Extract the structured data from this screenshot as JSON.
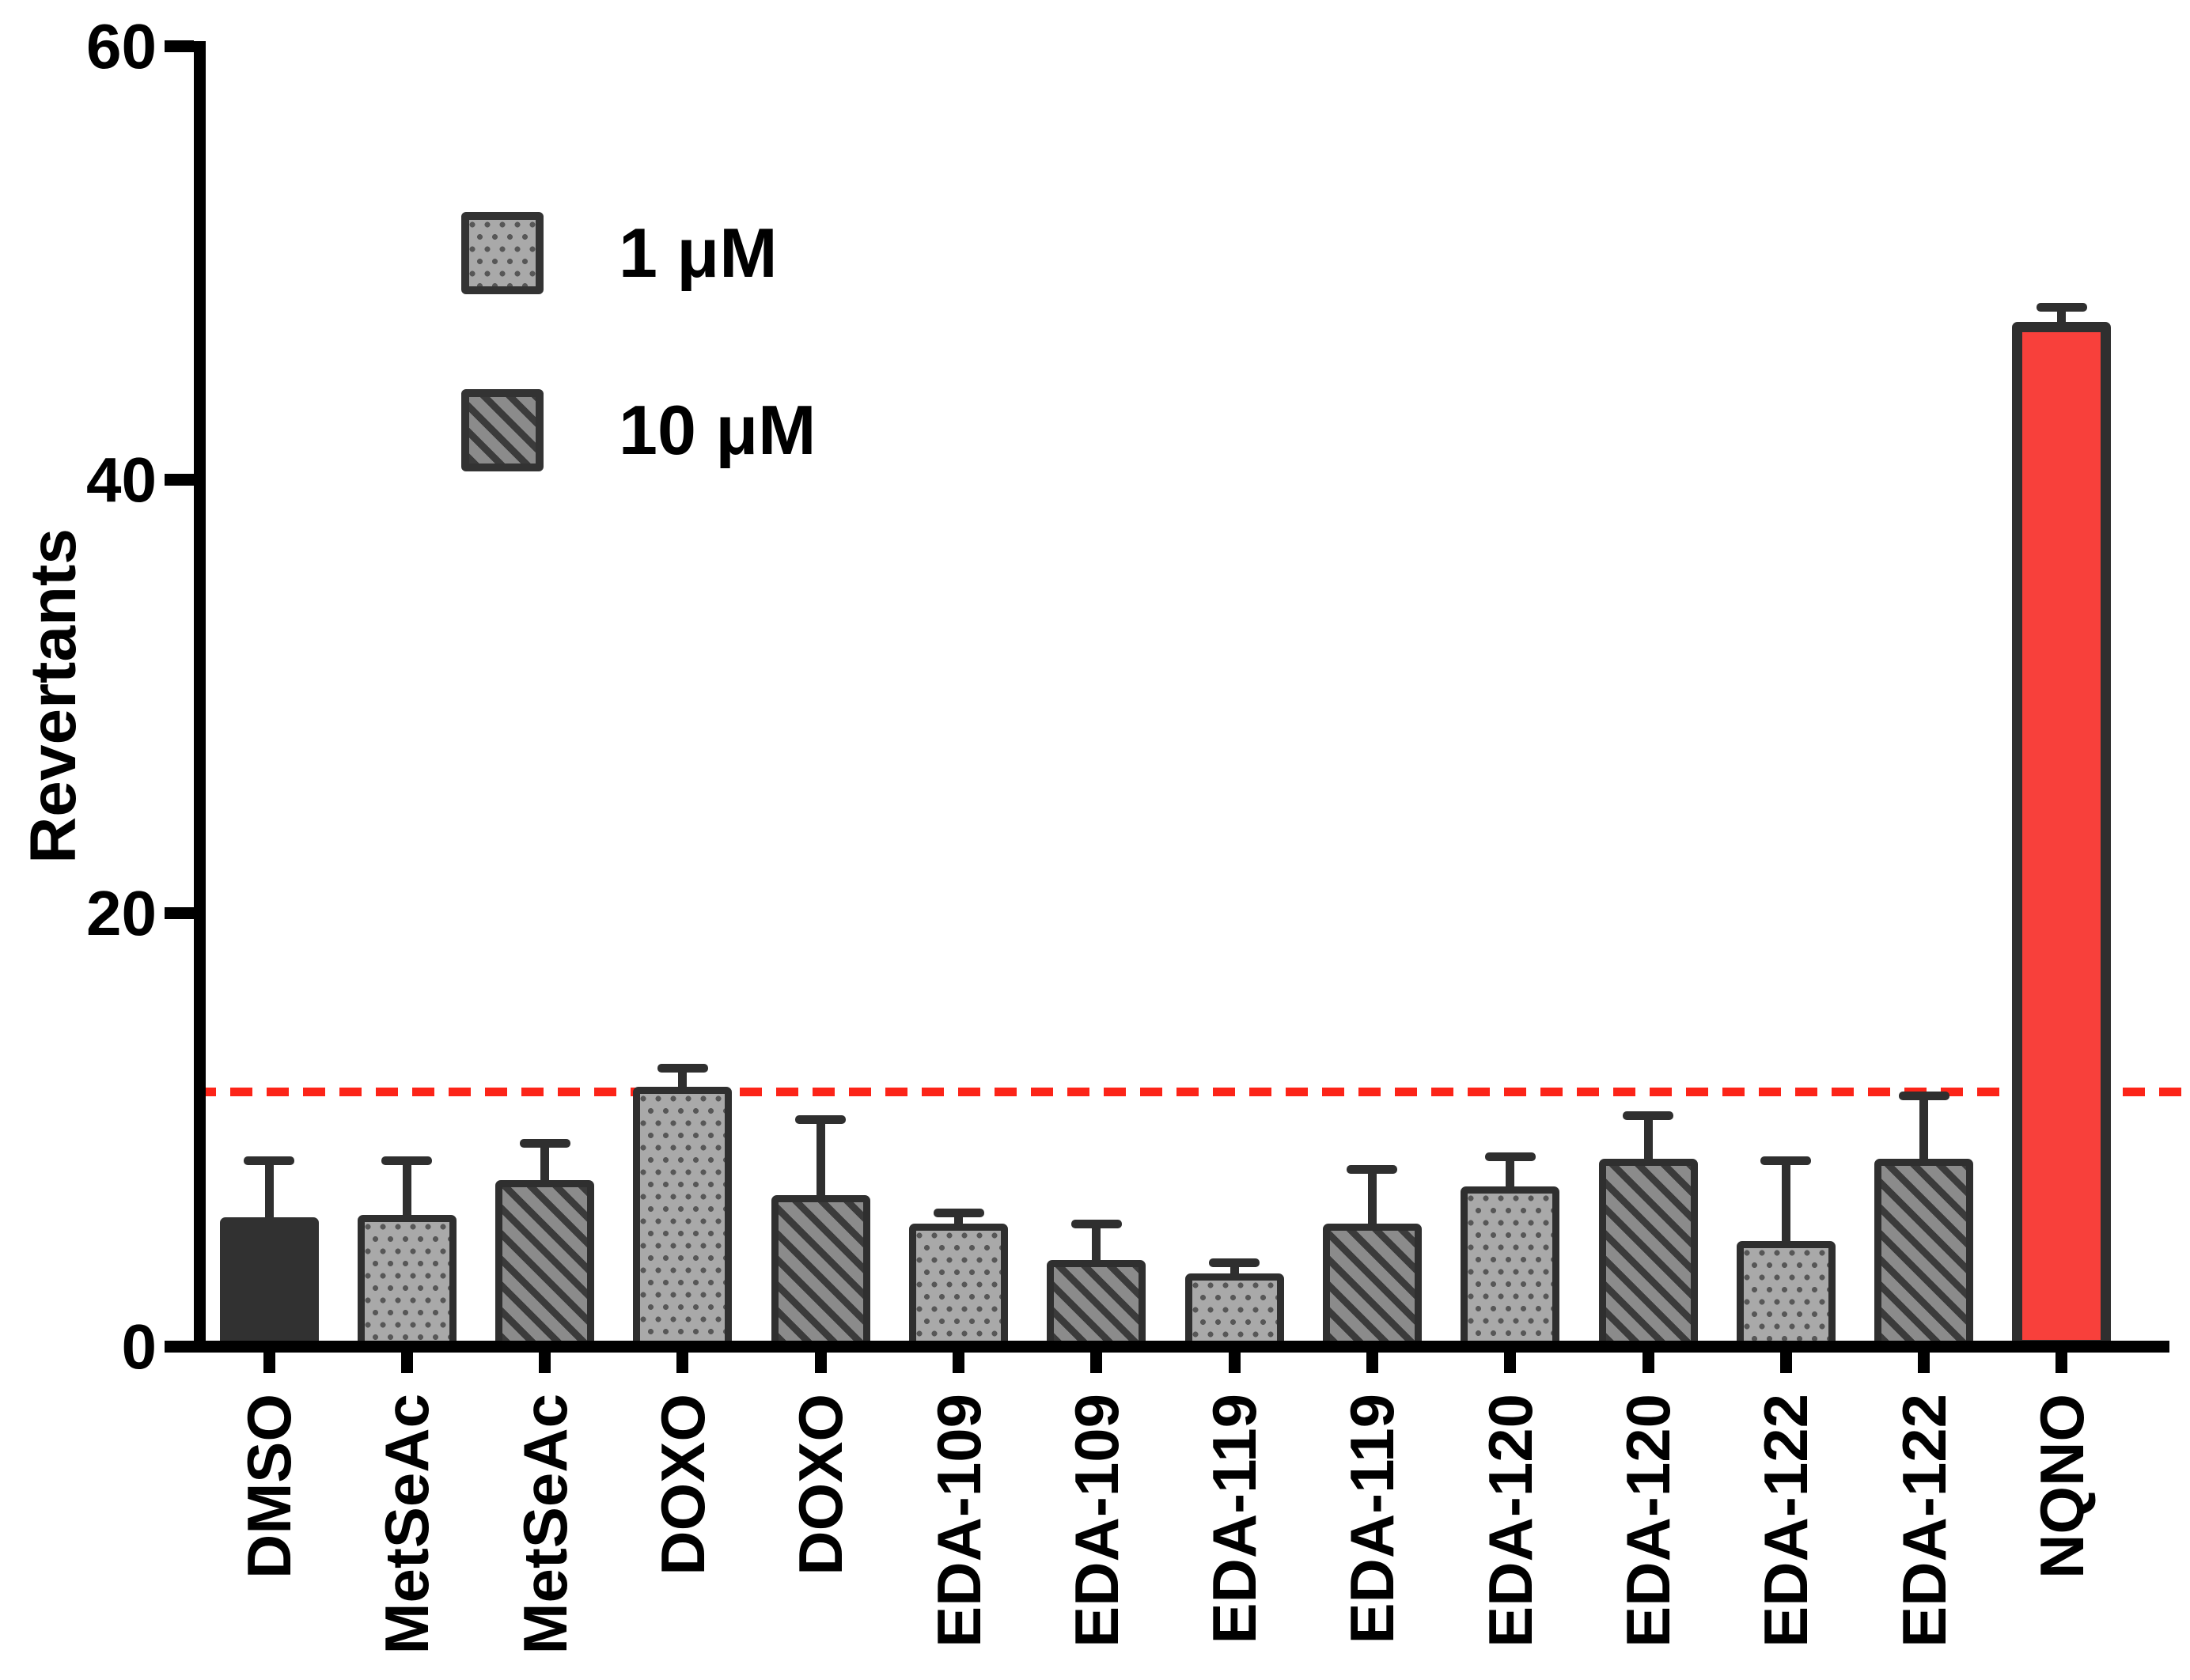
{
  "chart_data": {
    "type": "bar",
    "title": "",
    "ylabel": "Revertants",
    "xlabel": "",
    "ylim": [
      0,
      60
    ],
    "yticks": [
      0,
      20,
      40,
      60
    ],
    "grid": false,
    "legend_position": "top-left-inside",
    "legend": [
      {
        "label": "1 μM",
        "swatch": "dots"
      },
      {
        "label": "10 μM",
        "swatch": "hatch"
      }
    ],
    "threshold_line": {
      "value": 11.8,
      "color": "#fc2418",
      "style": "dashed"
    },
    "bars": [
      {
        "label": "DMSO",
        "series_of": null,
        "style": "solid",
        "value": 6.0,
        "error": 2.6
      },
      {
        "label": "MetSeAc",
        "series_of": "1 μM",
        "style": "dots",
        "value": 6.1,
        "error": 2.5
      },
      {
        "label": "MetSeAc",
        "series_of": "10 μM",
        "style": "hatch",
        "value": 7.7,
        "error": 1.7
      },
      {
        "label": "DOXO",
        "series_of": "1 μM",
        "style": "dots",
        "value": 12.0,
        "error": 0.9
      },
      {
        "label": "DOXO",
        "series_of": "10 μM",
        "style": "hatch",
        "value": 7.0,
        "error": 3.5
      },
      {
        "label": "EDA-109",
        "series_of": "1 μM",
        "style": "dots",
        "value": 5.7,
        "error": 0.5
      },
      {
        "label": "EDA-109",
        "series_of": "10 μM",
        "style": "hatch",
        "value": 4.0,
        "error": 1.7
      },
      {
        "label": "EDA-119",
        "series_of": "1 μM",
        "style": "dots",
        "value": 3.4,
        "error": 0.5
      },
      {
        "label": "EDA-119",
        "series_of": "10 μM",
        "style": "hatch",
        "value": 5.7,
        "error": 2.5
      },
      {
        "label": "EDA-120",
        "series_of": "1 μM",
        "style": "dots",
        "value": 7.4,
        "error": 1.4
      },
      {
        "label": "EDA-120",
        "series_of": "10 μM",
        "style": "hatch",
        "value": 8.7,
        "error": 2.0
      },
      {
        "label": "EDA-122",
        "series_of": "1 μM",
        "style": "dots",
        "value": 4.9,
        "error": 3.7
      },
      {
        "label": "EDA-122",
        "series_of": "10 μM",
        "style": "hatch",
        "value": 8.7,
        "error": 2.9
      },
      {
        "label": "NQNO",
        "series_of": null,
        "style": "red",
        "value": 47.3,
        "error": 0.7
      }
    ],
    "colors": {
      "bar_outline": "#2f2f2f",
      "solid_dark_fill": "#313131",
      "dotted_fill": "#a9a9a9",
      "dot_color": "#575757",
      "hatch_fill": "#8b8b8b",
      "hatch_stripe": "#3b3b3b",
      "red_bar_fill": "#f8403b",
      "threshold_red": "#fc2418",
      "axis_black": "#000000"
    }
  }
}
